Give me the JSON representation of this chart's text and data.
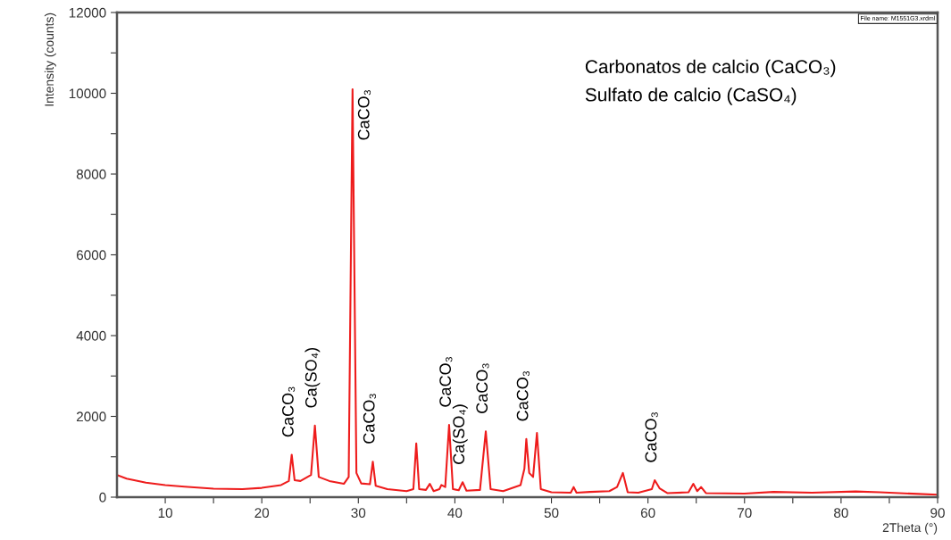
{
  "chart_data": {
    "type": "line",
    "xlabel": "2Theta (°)",
    "ylabel": "Intensity (counts)",
    "x": [
      5,
      6,
      8,
      10,
      12,
      15,
      18,
      20,
      22,
      22.8,
      23.1,
      23.4,
      24,
      25.1,
      25.5,
      25.9,
      27,
      28.5,
      29.0,
      29.4,
      29.8,
      30.3,
      31.2,
      31.5,
      31.8,
      33,
      35,
      35.7,
      36.0,
      36.3,
      37.0,
      37.4,
      37.8,
      38.4,
      38.6,
      39.0,
      39.4,
      39.8,
      40.4,
      40.8,
      41.2,
      42.6,
      43.2,
      43.7,
      45,
      46.8,
      47.2,
      47.4,
      47.7,
      48.1,
      48.5,
      48.9,
      50,
      52,
      52.3,
      52.6,
      54,
      56,
      56.8,
      57.4,
      57.9,
      59,
      60.4,
      60.7,
      61.2,
      62,
      64.2,
      64.7,
      65.1,
      65.5,
      66,
      70,
      73,
      77,
      81.5,
      84,
      88,
      90
    ],
    "series": [
      {
        "color": "#ee1c1c",
        "values": [
          550,
          460,
          360,
          300,
          260,
          210,
          200,
          230,
          300,
          400,
          1050,
          420,
          400,
          550,
          1770,
          500,
          400,
          330,
          500,
          10100,
          600,
          340,
          320,
          880,
          280,
          200,
          150,
          200,
          1330,
          200,
          180,
          330,
          150,
          200,
          300,
          250,
          1790,
          200,
          170,
          370,
          160,
          180,
          1630,
          200,
          150,
          300,
          700,
          1440,
          600,
          500,
          1590,
          200,
          120,
          110,
          250,
          110,
          130,
          150,
          250,
          600,
          120,
          110,
          200,
          420,
          220,
          100,
          120,
          330,
          150,
          250,
          100,
          90,
          130,
          110,
          140,
          120,
          80,
          60
        ]
      }
    ],
    "xlim": [
      5,
      90
    ],
    "ylim": [
      0,
      12000
    ],
    "xticks": [
      10,
      {
        "value": 15,
        "label": null
      },
      20,
      {
        "value": 25,
        "label": null
      },
      30,
      {
        "value": 35,
        "label": null
      },
      40,
      {
        "value": 45,
        "label": null
      },
      50,
      {
        "value": 55,
        "label": null
      },
      60,
      {
        "value": 65,
        "label": null
      },
      70,
      {
        "value": 75,
        "label": null
      },
      80,
      {
        "value": 85,
        "label": null
      },
      90
    ],
    "yticks": [
      0,
      {
        "value": 1000,
        "label": null
      },
      2000,
      {
        "value": 3000,
        "label": null
      },
      4000,
      {
        "value": 5000,
        "label": null
      },
      6000,
      {
        "value": 7000,
        "label": null
      },
      8000,
      {
        "value": 9000,
        "label": null
      },
      10000,
      {
        "value": 11000,
        "label": null
      },
      12000
    ],
    "grid": false,
    "legend": false,
    "marker": "none",
    "line_style": "solid",
    "annotations": [
      {
        "text": "CaCO₃",
        "x": 23.1,
        "y": 1050
      },
      {
        "text": "Ca(SO₄)",
        "x": 25.5,
        "y": 1770
      },
      {
        "text": "CaCO₃",
        "x": 29.4,
        "y": 10100
      },
      {
        "text": "CaCO₃",
        "x": 31.5,
        "y": 880
      },
      {
        "text": "CaCO₃",
        "x": 39.4,
        "y": 1790
      },
      {
        "text": "Ca(SO₄)",
        "x": 40.8,
        "y": 370
      },
      {
        "text": "CaCO₃",
        "x": 43.2,
        "y": 1630
      },
      {
        "text": "CaCO₃",
        "x": 47.4,
        "y": 1440
      },
      {
        "text": "CaCO₃",
        "x": 60.7,
        "y": 420
      },
      "Carbonatos de calcio (CaCO₃)",
      "Sulfato de calcio (CaSO₄)",
      "File name: M1551G3.xrdml"
    ]
  }
}
